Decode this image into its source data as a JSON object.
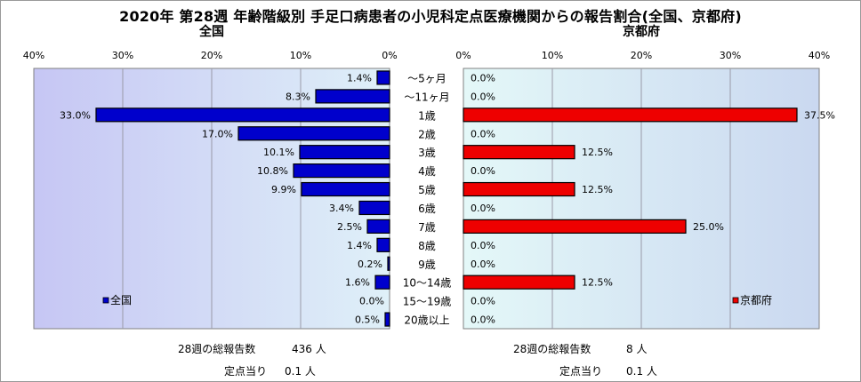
{
  "title": "2020年 第28週 年齢階級別 手足口病患者の小児科定点医療機関からの報告割合(全国、京都府)",
  "categories": [
    "～5ヶ月",
    "～11ヶ月",
    "1歳",
    "2歳",
    "3歳",
    "4歳",
    "5歳",
    "6歳",
    "7歳",
    "8歳",
    "9歳",
    "10～14歳",
    "15～19歳",
    "20歳以上"
  ],
  "chart_data": [
    {
      "type": "bar",
      "orientation": "horizontal",
      "title": "全国",
      "legend": "全国",
      "legend_position": "bottom-left",
      "color": "#0000cc",
      "xlim": [
        0,
        40
      ],
      "x_reversed": true,
      "ticks": [
        "0%",
        "10%",
        "20%",
        "30%",
        "40%"
      ],
      "categories": [
        "～5ヶ月",
        "～11ヶ月",
        "1歳",
        "2歳",
        "3歳",
        "4歳",
        "5歳",
        "6歳",
        "7歳",
        "8歳",
        "9歳",
        "10～14歳",
        "15～19歳",
        "20歳以上"
      ],
      "values": [
        1.4,
        8.3,
        33.0,
        17.0,
        10.1,
        10.8,
        9.9,
        3.4,
        2.5,
        1.4,
        0.2,
        1.6,
        0.0,
        0.5
      ],
      "labels": [
        "1.4%",
        "8.3%",
        "33.0%",
        "17.0%",
        "10.1%",
        "10.8%",
        "9.9%",
        "3.4%",
        "2.5%",
        "1.4%",
        "0.2%",
        "1.6%",
        "0.0%",
        "0.5%"
      ]
    },
    {
      "type": "bar",
      "orientation": "horizontal",
      "title": "京都府",
      "legend": "京都府",
      "legend_position": "bottom-right",
      "color": "#ee0000",
      "xlim": [
        0,
        40
      ],
      "x_reversed": false,
      "ticks": [
        "0%",
        "10%",
        "20%",
        "30%",
        "40%"
      ],
      "categories": [
        "～5ヶ月",
        "～11ヶ月",
        "1歳",
        "2歳",
        "3歳",
        "4歳",
        "5歳",
        "6歳",
        "7歳",
        "8歳",
        "9歳",
        "10～14歳",
        "15～19歳",
        "20歳以上"
      ],
      "values": [
        0.0,
        0.0,
        37.5,
        0.0,
        12.5,
        0.0,
        12.5,
        0.0,
        25.0,
        0.0,
        0.0,
        12.5,
        0.0,
        0.0
      ],
      "labels": [
        "0.0%",
        "0.0%",
        "37.5%",
        "0.0%",
        "12.5%",
        "0.0%",
        "12.5%",
        "0.0%",
        "25.0%",
        "0.0%",
        "0.0%",
        "12.5%",
        "0.0%",
        "0.0%"
      ]
    }
  ],
  "footer": {
    "national": {
      "total_label": "28週の総報告数",
      "total_value": "436 人",
      "per_label": "定点当り",
      "per_value": "0.1 人"
    },
    "kyoto": {
      "total_label": "28週の総報告数",
      "total_value": "8 人",
      "per_label": "定点当り",
      "per_value": "0.1 人"
    }
  }
}
